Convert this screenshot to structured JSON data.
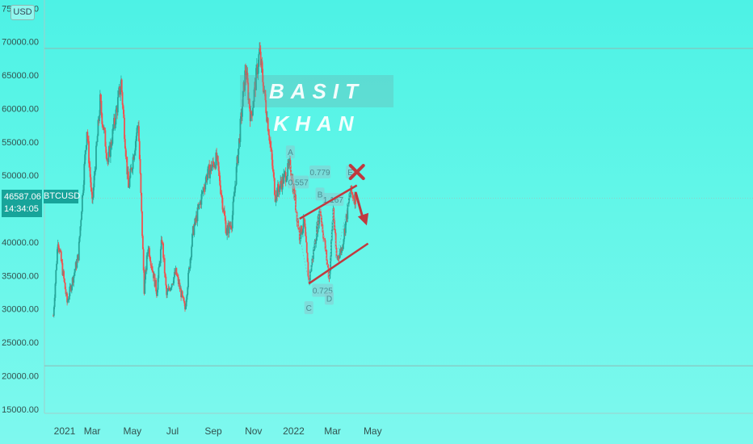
{
  "chart_data": {
    "type": "candlestick",
    "symbol": "BTCUSD",
    "currency": "USD",
    "last_price": "46587.06",
    "countdown": "14:34:05",
    "watermark": "BASIT KHAN",
    "ylim": [
      11000,
      76000
    ],
    "y_ticks": [
      "75000.00",
      "70000.00",
      "65000.00",
      "60000.00",
      "55000.00",
      "50000.00",
      "45000.00",
      "40000.00",
      "35000.00",
      "30000.00",
      "25000.00",
      "20000.00",
      "15000.00"
    ],
    "x_ticks": [
      "2021",
      "Mar",
      "May",
      "Jul",
      "Sep",
      "Nov",
      "2022",
      "Mar",
      "May"
    ],
    "horizontal_levels": [
      69000,
      21500
    ],
    "price_path": [
      [
        "2021-01-01",
        29000
      ],
      [
        "2021-01-08",
        40500
      ],
      [
        "2021-01-22",
        31000
      ],
      [
        "2021-02-08",
        38000
      ],
      [
        "2021-02-21",
        57000
      ],
      [
        "2021-03-01",
        45500
      ],
      [
        "2021-03-13",
        61000
      ],
      [
        "2021-03-25",
        52000
      ],
      [
        "2021-04-14",
        64000
      ],
      [
        "2021-04-25",
        48000
      ],
      [
        "2021-05-10",
        58000
      ],
      [
        "2021-05-19",
        33000
      ],
      [
        "2021-05-25",
        39500
      ],
      [
        "2021-06-07",
        32500
      ],
      [
        "2021-06-15",
        40500
      ],
      [
        "2021-06-22",
        32000
      ],
      [
        "2021-07-06",
        35500
      ],
      [
        "2021-07-20",
        30000
      ],
      [
        "2021-08-01",
        41500
      ],
      [
        "2021-08-22",
        50000
      ],
      [
        "2021-09-06",
        52500
      ],
      [
        "2021-09-21",
        41500
      ],
      [
        "2021-09-29",
        43000
      ],
      [
        "2021-10-20",
        66000
      ],
      [
        "2021-10-28",
        58500
      ],
      [
        "2021-11-10",
        68500
      ],
      [
        "2021-11-25",
        56000
      ],
      [
        "2021-12-04",
        47000
      ],
      [
        "2021-12-27",
        51500
      ],
      [
        "2022-01-10",
        41000
      ],
      [
        "2022-01-17",
        43000
      ],
      [
        "2022-01-24",
        34000
      ],
      [
        "2022-02-10",
        45000
      ],
      [
        "2022-02-24",
        34500
      ],
      [
        "2022-03-02",
        45000
      ],
      [
        "2022-03-07",
        37500
      ],
      [
        "2022-03-15",
        39000
      ],
      [
        "2022-03-28",
        47500
      ],
      [
        "2022-04-05",
        46587
      ]
    ],
    "wave_labels": [
      {
        "text": "A",
        "date": "2021-12-27",
        "price": 53500
      },
      {
        "text": "0.557",
        "date": "2022-01-08",
        "price": 49000
      },
      {
        "text": "0.779",
        "date": "2022-02-10",
        "price": 50500
      },
      {
        "text": "B",
        "date": "2022-02-10",
        "price": 47200
      },
      {
        "text": "1.167",
        "date": "2022-03-02",
        "price": 46400
      },
      {
        "text": "E",
        "date": "2022-03-28",
        "price": 50500
      },
      {
        "text": "0.725",
        "date": "2022-02-14",
        "price": 32800
      },
      {
        "text": "D",
        "date": "2022-02-24",
        "price": 31600
      },
      {
        "text": "C",
        "date": "2022-01-24",
        "price": 30200
      }
    ],
    "channel_lines": [
      {
        "from": [
          "2022-01-10",
          43500
        ],
        "to": [
          "2022-04-07",
          48500
        ]
      },
      {
        "from": [
          "2022-01-24",
          33800
        ],
        "to": [
          "2022-04-24",
          39800
        ]
      }
    ],
    "arrow": {
      "from": [
        "2022-04-05",
        47500
      ],
      "to": [
        "2022-04-22",
        42500
      ]
    },
    "x_marker": {
      "date": "2022-04-07",
      "price": 50500
    },
    "colors": {
      "up": "#26a69a",
      "down": "#ef5350",
      "annotation": "#c0393f",
      "wave": "#7fbbc2"
    }
  }
}
